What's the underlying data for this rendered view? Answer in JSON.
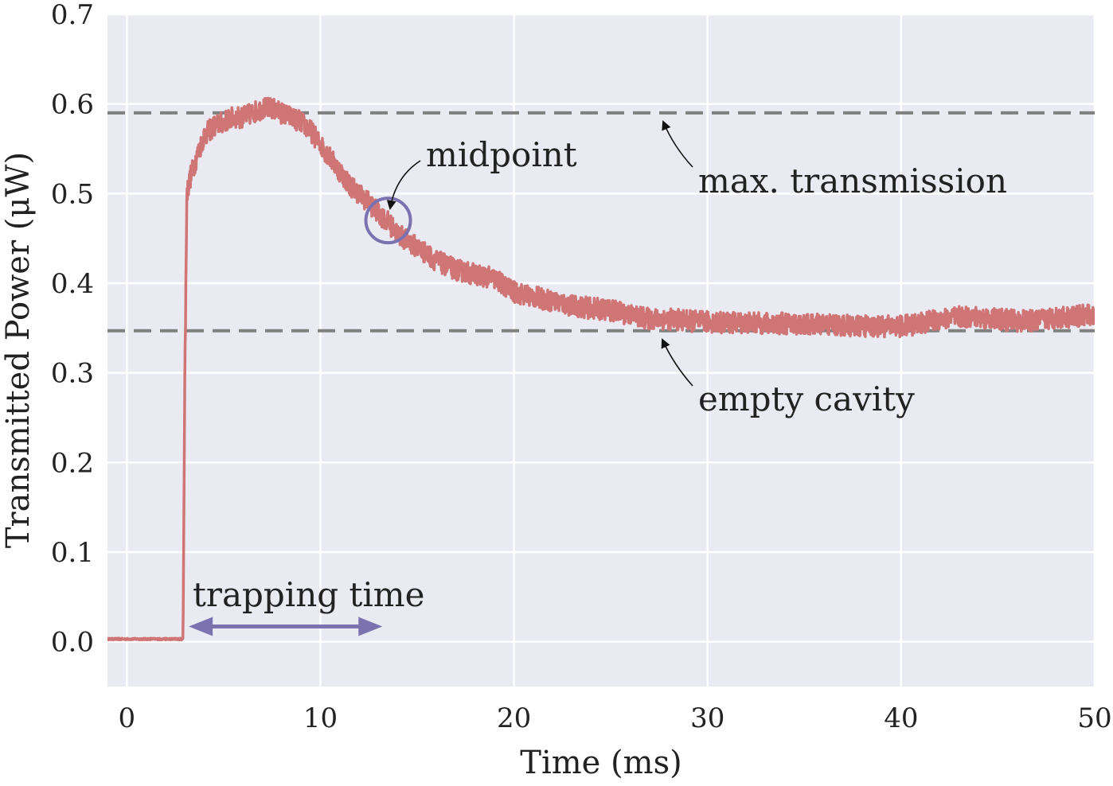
{
  "chart_data": {
    "type": "line",
    "xlabel": "Time (ms)",
    "ylabel": "Transmitted Power (μW)",
    "xlim": [
      -1,
      50
    ],
    "ylim": [
      -0.05,
      0.7
    ],
    "xticks": [
      0,
      10,
      20,
      30,
      40,
      50
    ],
    "yticks": [
      0.0,
      0.1,
      0.2,
      0.3,
      0.4,
      0.5,
      0.6,
      0.7
    ],
    "ytick_labels": [
      "0.0",
      "0.1",
      "0.2",
      "0.3",
      "0.4",
      "0.5",
      "0.6",
      "0.7"
    ],
    "grid": true,
    "series": [
      {
        "name": "transmitted power",
        "color": "#d07575",
        "x": [
          -1,
          0,
          1,
          2,
          2.9,
          3.0,
          3.1,
          3.3,
          3.6,
          4,
          4.5,
          5,
          5.5,
          6,
          6.5,
          7,
          7.5,
          8,
          8.5,
          9,
          9.5,
          10,
          10.5,
          11,
          11.5,
          12,
          12.5,
          13,
          13.5,
          14,
          15,
          16,
          17,
          18,
          19,
          20,
          21,
          22,
          23,
          24,
          25,
          26,
          27,
          28,
          29,
          30,
          31,
          32,
          33,
          34,
          35,
          36,
          37,
          38,
          39,
          40,
          41,
          42,
          43,
          44,
          45,
          46,
          47,
          48,
          49,
          50
        ],
        "y": [
          0.003,
          0.003,
          0.003,
          0.003,
          0.003,
          0.3,
          0.5,
          0.52,
          0.54,
          0.565,
          0.575,
          0.58,
          0.585,
          0.585,
          0.59,
          0.595,
          0.595,
          0.59,
          0.585,
          0.58,
          0.57,
          0.555,
          0.54,
          0.525,
          0.51,
          0.5,
          0.49,
          0.478,
          0.468,
          0.455,
          0.44,
          0.425,
          0.415,
          0.41,
          0.405,
          0.39,
          0.385,
          0.38,
          0.375,
          0.372,
          0.37,
          0.365,
          0.36,
          0.36,
          0.358,
          0.357,
          0.356,
          0.356,
          0.355,
          0.355,
          0.354,
          0.354,
          0.353,
          0.352,
          0.352,
          0.352,
          0.355,
          0.36,
          0.362,
          0.362,
          0.36,
          0.358,
          0.358,
          0.362,
          0.363,
          0.365
        ]
      }
    ],
    "reference_lines": [
      {
        "name": "max. transmission",
        "y": 0.59,
        "color": "#808080"
      },
      {
        "name": "empty cavity",
        "y": 0.347,
        "color": "#808080"
      }
    ],
    "annotations": [
      {
        "text": "midpoint",
        "point": [
          13.5,
          0.47
        ]
      },
      {
        "text": "max. transmission",
        "point": [
          27.5,
          0.59
        ]
      },
      {
        "text": "empty cavity",
        "point": [
          27.5,
          0.347
        ]
      },
      {
        "text": "trapping time",
        "span": [
          3.2,
          13.2
        ],
        "y": 0.017
      }
    ],
    "colors": {
      "plot_background": "#eaeaf2",
      "grid": "#ffffff",
      "accent": "#7c72b0"
    }
  }
}
